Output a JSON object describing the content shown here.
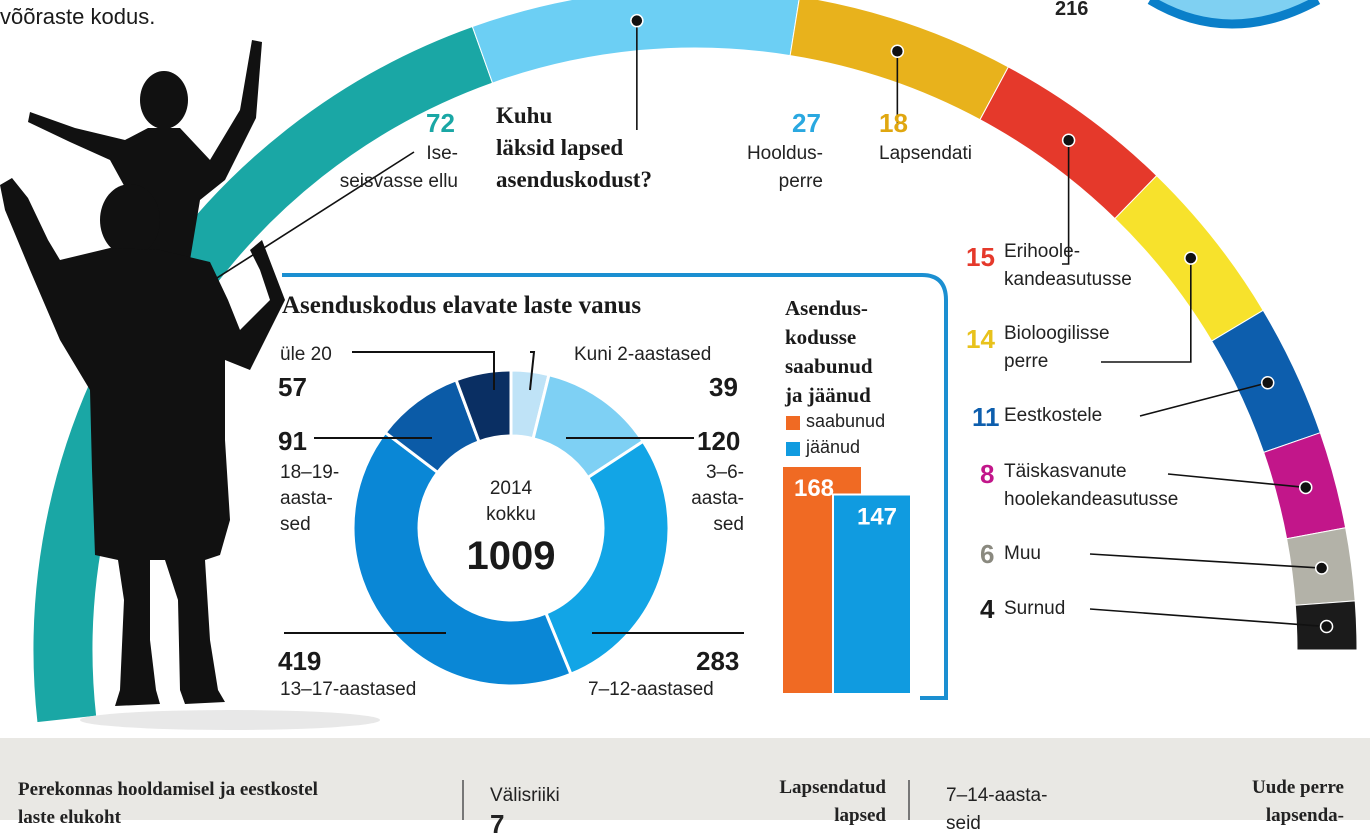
{
  "top": {
    "intro_text": "võõraste kodus.",
    "top_number": "216"
  },
  "chart_data": [
    {
      "type": "pie",
      "title": "Kuhu läksid lapsed asenduskodust?",
      "title_lines": [
        "Kuhu",
        "läksid lapsed",
        "asenduskodust?"
      ],
      "slices": [
        {
          "label": "Ise-seisvasse ellu",
          "value": 72,
          "color": "#1aa7a5"
        },
        {
          "label": "Hooldus-perre",
          "value": 27,
          "color": "#6ccff4"
        },
        {
          "label": "Lapsendati",
          "value": 18,
          "color": "#e8b21c"
        },
        {
          "label": "Erihoole-kandeasutusse",
          "value": 15,
          "color": "#e5392b"
        },
        {
          "label": "Bioloogilisse perre",
          "value": 14,
          "color": "#f7e22c"
        },
        {
          "label": "Eestkostele",
          "value": 11,
          "color": "#0d5ead"
        },
        {
          "label": "Täiskasvanute hoolekandeasutusse",
          "value": 8,
          "color": "#c2168a"
        },
        {
          "label": "Muu",
          "value": 6,
          "color": "#b3b2a8"
        },
        {
          "label": "Surnud",
          "value": 4,
          "color": "#1b1b1b"
        }
      ]
    },
    {
      "type": "pie",
      "title": "Asenduskodus elavate laste vanus",
      "center_year": "2014",
      "center_label": "kokku",
      "center_total": "1009",
      "slices": [
        {
          "label": "Kuni 2-aastased",
          "value": 39,
          "color": "#bfe3f7"
        },
        {
          "label": "3–6-aastased",
          "value": 120,
          "color": "#7ed0f4"
        },
        {
          "label": "7–12-aastased",
          "value": 283,
          "color": "#12a5e6"
        },
        {
          "label": "13–17-aastased",
          "value": 419,
          "color": "#0a87d6"
        },
        {
          "label": "18–19-aastased",
          "value": 91,
          "color": "#0b5ba7"
        },
        {
          "label": "üle 20",
          "value": 57,
          "color": "#0a2f63"
        }
      ]
    },
    {
      "type": "bar",
      "title": "Asendus-kodusse saabunud ja jäänud",
      "title_lines": [
        "Asendus-",
        "kodusse",
        "saabunud",
        "ja jäänud"
      ],
      "categories": [
        "saabunud",
        "jäänud"
      ],
      "values": [
        168,
        147
      ],
      "colors": [
        "#f06a23",
        "#109be0"
      ],
      "ylim": [
        0,
        168
      ]
    }
  ],
  "arc_labels": {
    "iseseisvasse": {
      "num": "72",
      "l1": "Ise-",
      "l2": "seisvasse ellu"
    },
    "hooldus": {
      "num": "27",
      "l1": "Hooldus-",
      "l2": "perre"
    },
    "lapsendati": {
      "num": "18",
      "l1": "Lapsendati"
    },
    "erihoole": {
      "num": "15",
      "l1": "Erihoole-",
      "l2": "kandeasutusse"
    },
    "bioloogilisse": {
      "num": "14",
      "l1": "Bioloogilisse",
      "l2": "perre"
    },
    "eestkostele": {
      "num": "11",
      "l1": "Eestkostele"
    },
    "taiskasvanute": {
      "num": "8",
      "l1": "Täiskasvanute",
      "l2": "hoolekandeasutusse"
    },
    "muu": {
      "num": "6",
      "l1": "Muu"
    },
    "surnud": {
      "num": "4",
      "l1": "Surnud"
    }
  },
  "donut_labels": {
    "ule20": {
      "l1": "üle 20",
      "num": "57"
    },
    "kuni2": {
      "l1": "Kuni 2-aastased",
      "num": "39"
    },
    "age18": {
      "num": "91",
      "l1": "18–19-",
      "l2": "aasta-",
      "l3": "sed"
    },
    "age3": {
      "num": "120",
      "l1": "3–6-",
      "l2": "aasta-",
      "l3": "sed"
    },
    "age13": {
      "num": "419",
      "l1": "13–17-aastased"
    },
    "age7": {
      "num": "283",
      "l1": "7–12-aastased"
    }
  },
  "bar_legend": {
    "arrived": "saabunud",
    "stayed": "jäänud"
  },
  "bottom": {
    "col1_l1": "Perekonnas hooldamisel ja eestkostel",
    "col1_l2": "laste elukoht",
    "col2_l1": "Välisriiki",
    "col2_l2": "7",
    "col3_l1": "Lapsendatud",
    "col3_l2": "lapsed",
    "col4_l1": "7–14-aasta-",
    "col4_l2": "seid",
    "col5_l1": "Uude perre",
    "col5_l2": "lapsenda-"
  }
}
